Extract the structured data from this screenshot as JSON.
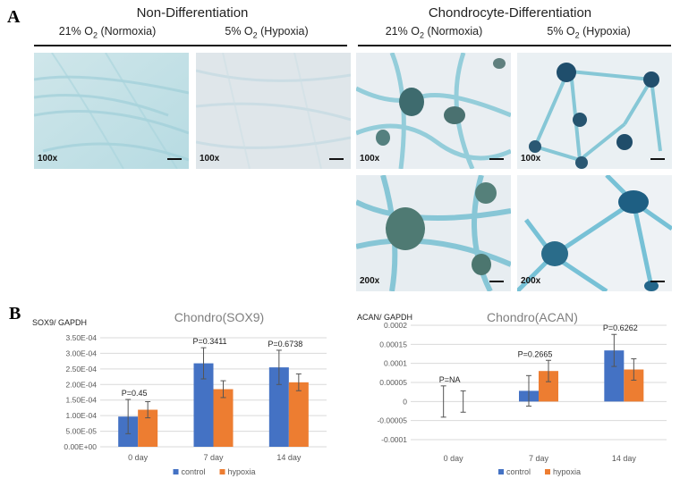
{
  "panel_a": {
    "letter": "A",
    "groups": [
      {
        "title": "Non-Differentiation",
        "conditions": [
          {
            "prefix": "21% O",
            "sub": "2",
            "suffix": " (Normoxia)"
          },
          {
            "prefix": "5% O",
            "sub": "2",
            "suffix": " (Hypoxia)"
          }
        ]
      },
      {
        "title": "Chondrocyte-Differentiation",
        "conditions": [
          {
            "prefix": "21% O",
            "sub": "2",
            "suffix": " (Normoxia)"
          },
          {
            "prefix": "5% O",
            "sub": "2",
            "suffix": " (Hypoxia)"
          }
        ]
      }
    ],
    "images": [
      {
        "mag": "100x"
      },
      {
        "mag": "100x"
      },
      {
        "mag": "100x"
      },
      {
        "mag": "100x"
      },
      {
        "mag": "200x"
      },
      {
        "mag": "200x"
      }
    ]
  },
  "panel_b": {
    "letter": "B"
  },
  "colors": {
    "control": "#4472C4",
    "hypoxia": "#ED7D31",
    "grid": "#d9d9d9",
    "axis_text": "#595959",
    "title": "#7f7f7f"
  },
  "chart_data": [
    {
      "type": "bar",
      "title": "Chondro(SOX9)",
      "ylabel": "SOX9/ GAPDH",
      "categories": [
        "0 day",
        "7 day",
        "14 day"
      ],
      "yticks": [
        "3.50E-04",
        "3.00E-04",
        "2.50E-04",
        "2.00E-04",
        "1.50E-04",
        "1.00E-04",
        "5.00E-05",
        "0.00E+00"
      ],
      "ytick_values": [
        0.00035,
        0.0003,
        0.00025,
        0.0002,
        0.00015,
        0.0001,
        5e-05,
        0
      ],
      "ylim": [
        0,
        0.00035
      ],
      "grid": true,
      "series": [
        {
          "name": "control",
          "values": [
            9.7e-05,
            0.000268,
            0.000255
          ],
          "errors": [
            5.5e-05,
            5e-05,
            5.5e-05
          ]
        },
        {
          "name": "hypoxia",
          "values": [
            0.000119,
            0.000185,
            0.000207
          ],
          "errors": [
            2.6e-05,
            2.7e-05,
            2.7e-05
          ]
        }
      ],
      "annotations": [
        "P=0.45",
        "P=0.3411",
        "P=0.6738"
      ],
      "legend": "bottom"
    },
    {
      "type": "bar",
      "title": "Chondro(ACAN)",
      "ylabel": "ACAN/ GAPDH",
      "categories": [
        "0 day",
        "7 day",
        "14 day"
      ],
      "yticks": [
        "0.0002",
        "0.00015",
        "0.0001",
        "0.00005",
        "0",
        "-0.00005",
        "-0.0001"
      ],
      "ytick_values": [
        0.0002,
        0.00015,
        0.0001,
        5e-05,
        0,
        -5e-05,
        -0.0001
      ],
      "ylim": [
        -0.0001,
        0.0002
      ],
      "grid": true,
      "series": [
        {
          "name": "control",
          "values": [
            0.0,
            2.8e-05,
            0.000134
          ],
          "errors": [
            4.1e-05,
            4e-05,
            4.2e-05
          ]
        },
        {
          "name": "hypoxia",
          "values": [
            0.0,
            8e-05,
            8.4e-05
          ],
          "errors": [
            2.8e-05,
            2.8e-05,
            2.8e-05
          ]
        }
      ],
      "annotations": [
        "P=NA",
        "P=0.2665",
        "P=0.6262"
      ],
      "legend": "bottom"
    }
  ]
}
